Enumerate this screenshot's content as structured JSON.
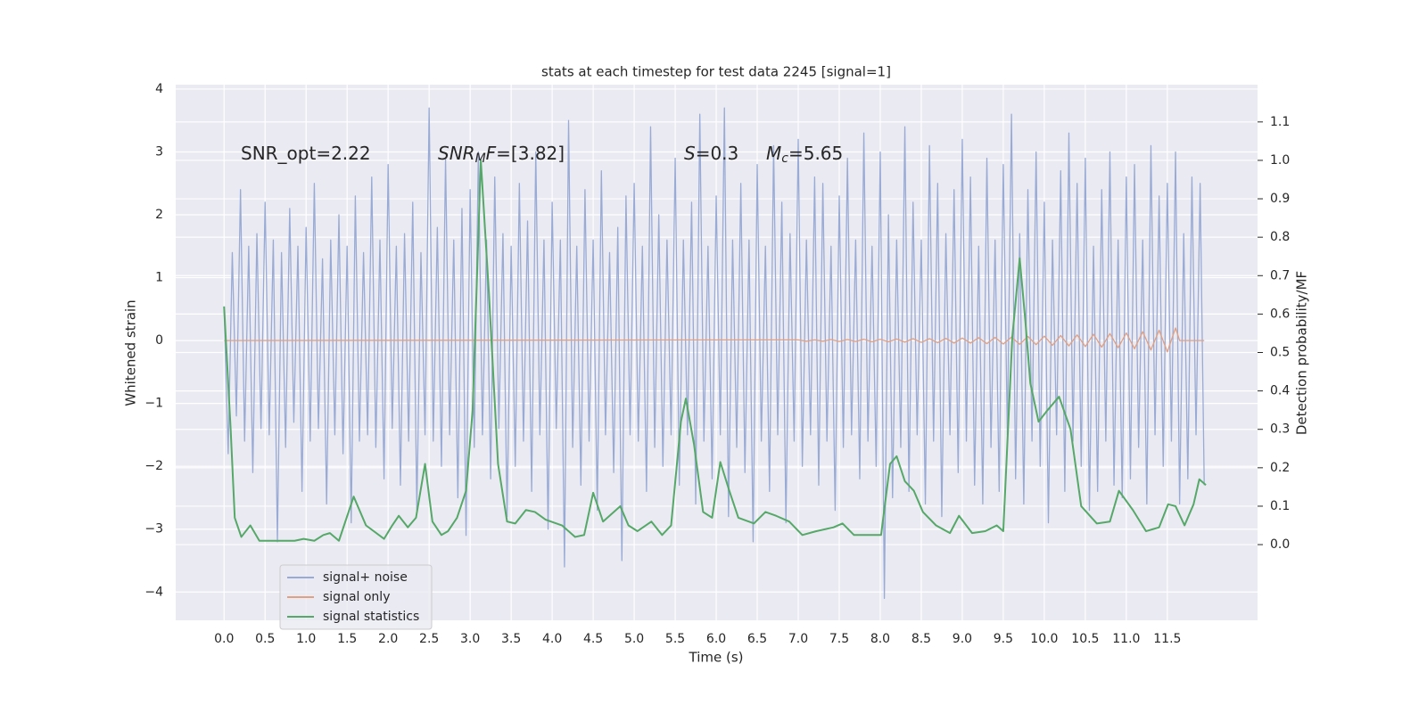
{
  "chart_data": {
    "type": "line",
    "title": "stats at each timestep for test data 2245 [signal=1]",
    "xlabel": "Time (s)",
    "ylabel": "Whitened strain",
    "y2label": "Detection probability/MF",
    "annotations": [
      {
        "parts": [
          "SNR_opt=2.22"
        ]
      },
      {
        "parts": [
          "SNR",
          "M",
          "F",
          "=[3.82]"
        ]
      },
      {
        "parts": [
          "S",
          "=0.3"
        ]
      },
      {
        "parts": [
          "M",
          "c",
          "=5.65"
        ]
      }
    ],
    "xlim": [
      -0.59,
      12.6
    ],
    "ylim": [
      -4.45,
      4.07
    ],
    "y2lim": [
      -0.197,
      1.197
    ],
    "xticks": [
      {
        "value": 0,
        "label": "0.0"
      },
      0.5,
      {
        "value": 1,
        "label": "1.0"
      },
      1.5,
      {
        "value": 2,
        "label": "2.0"
      },
      2.5,
      {
        "value": 3,
        "label": "3.0"
      },
      3.5,
      {
        "value": 4,
        "label": "4.0"
      },
      4.5,
      {
        "value": 5,
        "label": "5.0"
      },
      5.5,
      {
        "value": 6,
        "label": "6.0"
      },
      6.5,
      {
        "value": 7,
        "label": "7.0"
      },
      7.5,
      {
        "value": 8,
        "label": "8.0"
      },
      8.5,
      {
        "value": 9,
        "label": "9.0"
      },
      9.5,
      {
        "value": 10,
        "label": "10.0"
      },
      10.5,
      {
        "value": 11,
        "label": "11.0"
      },
      11.5
    ],
    "yticks": [
      {
        "value": -4,
        "label": "−4"
      },
      {
        "value": -3,
        "label": "−3"
      },
      {
        "value": -2,
        "label": "−2"
      },
      {
        "value": -1,
        "label": "−1"
      },
      0,
      1,
      2,
      3,
      4
    ],
    "y2ticks": [
      {
        "value": 0,
        "label": "0.0"
      },
      0.1,
      0.2,
      0.3,
      0.4,
      0.5,
      0.6,
      0.7,
      0.8,
      0.9,
      {
        "value": 1,
        "label": "1.0"
      },
      1.1
    ],
    "grid": true,
    "legend": "lower left",
    "x": [
      0,
      0.05,
      0.1,
      0.15,
      0.2,
      0.25,
      0.3,
      0.35,
      0.4,
      0.45,
      0.5,
      0.55,
      0.6,
      0.65,
      0.7,
      0.75,
      0.8,
      0.85,
      0.9,
      0.95,
      1,
      1.05,
      1.1,
      1.15,
      1.2,
      1.25,
      1.3,
      1.35,
      1.4,
      1.45,
      1.5,
      1.55,
      1.6,
      1.65,
      1.7,
      1.75,
      1.8,
      1.85,
      1.9,
      1.95,
      2,
      2.05,
      2.1,
      2.15,
      2.2,
      2.25,
      2.3,
      2.35,
      2.4,
      2.45,
      2.5,
      2.55,
      2.6,
      2.65,
      2.7,
      2.75,
      2.8,
      2.85,
      2.9,
      2.95,
      3,
      3.05,
      3.1,
      3.15,
      3.2,
      3.25,
      3.3,
      3.35,
      3.4,
      3.45,
      3.5,
      3.55,
      3.6,
      3.65,
      3.7,
      3.75,
      3.8,
      3.85,
      3.9,
      3.95,
      4,
      4.05,
      4.1,
      4.15,
      4.2,
      4.25,
      4.3,
      4.35,
      4.4,
      4.45,
      4.5,
      4.55,
      4.6,
      4.65,
      4.7,
      4.75,
      4.8,
      4.85,
      4.9,
      4.95,
      5,
      5.05,
      5.1,
      5.15,
      5.2,
      5.25,
      5.3,
      5.35,
      5.4,
      5.45,
      5.5,
      5.55,
      5.6,
      5.65,
      5.7,
      5.75,
      5.8,
      5.85,
      5.9,
      5.95,
      6,
      6.05,
      6.1,
      6.15,
      6.2,
      6.25,
      6.3,
      6.35,
      6.4,
      6.45,
      6.5,
      6.55,
      6.6,
      6.65,
      6.7,
      6.75,
      6.8,
      6.85,
      6.9,
      6.95,
      7,
      7.05,
      7.1,
      7.15,
      7.2,
      7.25,
      7.3,
      7.35,
      7.4,
      7.45,
      7.5,
      7.55,
      7.6,
      7.65,
      7.7,
      7.75,
      7.8,
      7.85,
      7.9,
      7.95,
      8,
      8.05,
      8.1,
      8.15,
      8.2,
      8.25,
      8.3,
      8.35,
      8.4,
      8.45,
      8.5,
      8.55,
      8.6,
      8.65,
      8.7,
      8.75,
      8.8,
      8.85,
      8.9,
      8.95,
      9,
      9.05,
      9.1,
      9.15,
      9.2,
      9.25,
      9.3,
      9.35,
      9.4,
      9.45,
      9.5,
      9.55,
      9.6,
      9.65,
      9.7,
      9.75,
      9.8,
      9.85,
      9.9,
      9.95,
      10,
      10.05,
      10.1,
      10.15,
      10.2,
      10.25,
      10.3,
      10.35,
      10.4,
      10.45,
      10.5,
      10.55,
      10.6,
      10.65,
      10.7,
      10.75,
      10.8,
      10.85,
      10.9,
      10.95,
      11,
      11.05,
      11.1,
      11.15,
      11.2,
      11.25,
      11.3,
      11.35,
      11.4,
      11.45,
      11.5,
      11.55,
      11.6,
      11.65,
      11.7,
      11.75,
      11.8,
      11.85,
      11.9,
      11.95
    ],
    "series": [
      {
        "name": "signal+ noise",
        "color": "#99aad4",
        "values": [
          0.5,
          -1.8,
          1.4,
          -1.2,
          2.4,
          -1.6,
          1.5,
          -2.1,
          1.7,
          -1.4,
          2.2,
          -1.5,
          1.6,
          -3.2,
          1.4,
          -1.7,
          2.1,
          -1.3,
          1.5,
          -2.4,
          1.8,
          -1.6,
          2.5,
          -1.4,
          1.3,
          -2.6,
          1.6,
          -1.5,
          2.0,
          -1.8,
          1.5,
          -2.9,
          2.3,
          -1.6,
          1.4,
          -1.5,
          2.6,
          -1.7,
          1.6,
          -2.2,
          2.8,
          -1.4,
          1.5,
          -2.3,
          1.7,
          -1.6,
          2.2,
          -2.7,
          1.4,
          -1.5,
          3.7,
          -1.6,
          1.8,
          -2.0,
          2.9,
          -1.5,
          1.6,
          -2.5,
          2.1,
          -3.1,
          2.4,
          -1.7,
          3.0,
          -1.5,
          1.6,
          -2.2,
          2.6,
          -1.4,
          1.7,
          -2.8,
          1.5,
          -2.0,
          2.5,
          -1.6,
          1.9,
          -2.4,
          3.0,
          -1.5,
          1.6,
          -3.0,
          2.2,
          -1.4,
          1.6,
          -3.6,
          3.5,
          -1.7,
          1.5,
          -2.3,
          2.4,
          -1.6,
          1.6,
          -2.7,
          2.7,
          -1.5,
          1.4,
          -2.1,
          1.8,
          -3.5,
          2.3,
          -1.5,
          2.5,
          -1.6,
          1.5,
          -2.4,
          3.4,
          -1.7,
          2.0,
          -2.0,
          1.6,
          -1.5,
          2.9,
          -2.3,
          1.6,
          -1.5,
          2.2,
          -2.6,
          3.6,
          -1.6,
          1.5,
          -2.2,
          2.3,
          -1.5,
          3.7,
          -2.8,
          1.6,
          -1.7,
          2.5,
          -2.1,
          1.6,
          -3.2,
          2.8,
          -1.6,
          1.5,
          -2.4,
          3.1,
          -1.5,
          2.2,
          -2.9,
          1.7,
          -1.6,
          3.2,
          -2.0,
          1.6,
          -1.5,
          2.6,
          -2.3,
          2.5,
          -1.6,
          1.5,
          -2.7,
          2.3,
          -1.7,
          2.9,
          -1.5,
          1.6,
          -2.2,
          3.3,
          -1.6,
          1.5,
          -2.0,
          3.0,
          -4.1,
          2.0,
          -2.5,
          1.6,
          -1.7,
          3.4,
          -2.4,
          2.2,
          -1.5,
          1.6,
          -2.6,
          3.1,
          -1.6,
          2.5,
          -2.8,
          1.7,
          -1.5,
          2.4,
          -2.1,
          3.2,
          -1.6,
          2.6,
          -2.3,
          1.5,
          -2.6,
          2.9,
          -1.7,
          1.6,
          -2.4,
          2.8,
          -1.5,
          3.6,
          -2.2,
          1.7,
          -2.6,
          2.4,
          -1.6,
          3.0,
          -2.0,
          2.2,
          -2.9,
          1.6,
          -1.5,
          2.7,
          -2.4,
          3.3,
          -1.6,
          2.5,
          -2.0,
          2.9,
          -2.7,
          1.5,
          -2.4,
          2.4,
          -1.6,
          3.0,
          -2.3,
          1.6,
          -2.5,
          2.6,
          -2.2,
          2.8,
          -1.7,
          1.6,
          -2.6,
          3.1,
          -1.5,
          2.3,
          -2.0,
          2.5,
          -1.6,
          3.0,
          -2.6,
          1.7,
          -2.2,
          2.6,
          -1.5,
          2.5,
          -2.3
        ]
      },
      {
        "name": "signal only",
        "color": "#e0a084",
        "x": [
          0,
          7,
          7.1,
          7.2,
          7.3,
          7.4,
          7.5,
          7.6,
          7.7,
          7.8,
          7.9,
          8,
          8.1,
          8.2,
          8.3,
          8.4,
          8.5,
          8.6,
          8.7,
          8.8,
          8.9,
          9,
          9.1,
          9.2,
          9.3,
          9.4,
          9.5,
          9.6,
          9.7,
          9.8,
          9.9,
          10,
          10.1,
          10.2,
          10.3,
          10.4,
          10.5,
          10.6,
          10.7,
          10.8,
          10.9,
          11,
          11.1,
          11.2,
          11.3,
          11.4,
          11.5,
          11.6,
          11.65,
          11.95
        ],
        "values": [
          0,
          0.01,
          -0.01,
          0.01,
          -0.01,
          0.015,
          -0.015,
          0.015,
          -0.015,
          0.02,
          -0.02,
          0.02,
          -0.02,
          0.025,
          -0.025,
          0.03,
          -0.03,
          0.03,
          -0.035,
          0.035,
          -0.04,
          0.04,
          -0.04,
          0.045,
          -0.05,
          0.05,
          -0.055,
          0.055,
          -0.06,
          0.065,
          -0.065,
          0.07,
          -0.075,
          0.08,
          -0.085,
          0.09,
          -0.095,
          0.1,
          -0.105,
          0.11,
          -0.115,
          0.12,
          -0.13,
          0.14,
          -0.15,
          0.165,
          -0.18,
          0.2,
          0,
          0
        ]
      },
      {
        "name": "signal statistics",
        "color": "#55a868",
        "axis": "y2",
        "x": [
          0,
          0.08,
          0.13,
          0.21,
          0.32,
          0.43,
          0.64,
          0.86,
          0.97,
          1.1,
          1.21,
          1.29,
          1.4,
          1.58,
          1.73,
          1.95,
          2.05,
          2.13,
          2.24,
          2.34,
          2.45,
          2.54,
          2.65,
          2.73,
          2.84,
          2.95,
          3.03,
          3.13,
          3.23,
          3.34,
          3.45,
          3.55,
          3.68,
          3.79,
          3.92,
          4.12,
          4.28,
          4.39,
          4.5,
          4.62,
          4.83,
          4.93,
          5.04,
          5.21,
          5.34,
          5.45,
          5.57,
          5.63,
          5.73,
          5.84,
          5.95,
          6.05,
          6.16,
          6.27,
          6.46,
          6.6,
          6.73,
          6.89,
          7.05,
          7.22,
          7.43,
          7.54,
          7.68,
          7.87,
          8.01,
          8.12,
          8.2,
          8.3,
          8.41,
          8.52,
          8.68,
          8.85,
          8.96,
          9.12,
          9.28,
          9.42,
          9.5,
          9.61,
          9.7,
          9.77,
          9.83,
          9.93,
          10.04,
          10.18,
          10.32,
          10.45,
          10.64,
          10.8,
          10.91,
          11.08,
          11.24,
          11.4,
          11.51,
          11.6,
          11.71,
          11.82,
          11.89,
          11.97
        ],
        "values": [
          0.62,
          0.3,
          0.07,
          0.02,
          0.05,
          0.01,
          0.01,
          0.01,
          0.015,
          0.01,
          0.025,
          0.03,
          0.01,
          0.125,
          0.05,
          0.015,
          0.05,
          0.075,
          0.045,
          0.07,
          0.21,
          0.06,
          0.025,
          0.035,
          0.07,
          0.14,
          0.35,
          1.0,
          0.65,
          0.21,
          0.06,
          0.055,
          0.09,
          0.085,
          0.065,
          0.05,
          0.02,
          0.025,
          0.135,
          0.06,
          0.1,
          0.05,
          0.035,
          0.06,
          0.025,
          0.05,
          0.32,
          0.38,
          0.26,
          0.085,
          0.07,
          0.215,
          0.14,
          0.07,
          0.055,
          0.085,
          0.075,
          0.06,
          0.025,
          0.035,
          0.045,
          0.055,
          0.025,
          0.025,
          0.025,
          0.21,
          0.23,
          0.165,
          0.14,
          0.085,
          0.05,
          0.03,
          0.075,
          0.03,
          0.035,
          0.05,
          0.035,
          0.54,
          0.745,
          0.58,
          0.42,
          0.32,
          0.35,
          0.385,
          0.3,
          0.1,
          0.055,
          0.06,
          0.14,
          0.09,
          0.035,
          0.045,
          0.105,
          0.1,
          0.05,
          0.105,
          0.17,
          0.155
        ]
      }
    ]
  }
}
